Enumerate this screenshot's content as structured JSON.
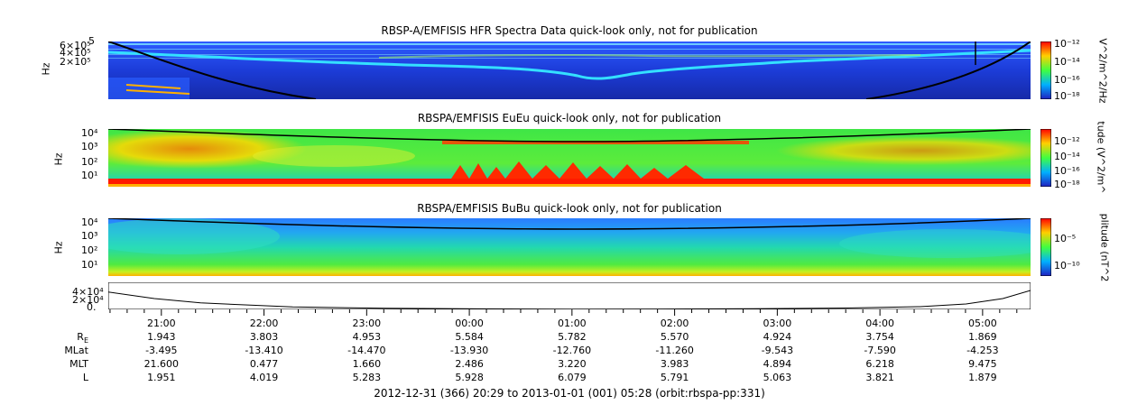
{
  "chart_data": [
    {
      "type": "heatmap",
      "title": "RBSP-A/EMFISIS  HFR Spectra Data quick-look only, not for publication",
      "ylabel": "Hz",
      "y_scale": "log",
      "yticks": [
        "6×10⁵",
        "4×10⁵",
        "2×10⁵"
      ],
      "ytick_top": "5",
      "colorbar_label": "V^2/m^2/Hz",
      "colorbar_ticks": [
        "10⁻¹²",
        "10⁻¹⁴",
        "10⁻¹⁶",
        "10⁻¹⁸"
      ],
      "colors": {
        "background": "#1a3fd6",
        "band": "#2bd3ff",
        "low": "#1b23a8",
        "hot": "#ffb000"
      }
    },
    {
      "type": "heatmap",
      "title": "RBSPA/EMFISIS  EuEu quick-look only, not for publication",
      "ylabel": "Hz",
      "y_scale": "log",
      "yticks": [
        "10⁴",
        "10³",
        "10²",
        "10¹",
        "10⁰"
      ],
      "colorbar_label": "tude (V^2/m^",
      "colorbar_ticks": [
        "10⁻¹²",
        "10⁻¹⁴",
        "10⁻¹⁶",
        "10⁻¹⁸"
      ],
      "colors": {
        "background": "#3ee04a",
        "hot": "#ff2a00",
        "warm": "#ffd000"
      }
    },
    {
      "type": "heatmap",
      "title": "RBSPA/EMFISIS  BuBu quick-look only, not for publication",
      "ylabel": "Hz",
      "y_scale": "log",
      "yticks": [
        "10⁴",
        "10³",
        "10²",
        "10¹"
      ],
      "colorbar_label": "plitude (nT^2",
      "colorbar_ticks": [
        "10⁻⁵",
        "10⁻¹⁰"
      ],
      "colors": {
        "top": "#2a8cff",
        "mid": "#2fe09a",
        "bottom": "#ffd000"
      }
    },
    {
      "type": "line",
      "yticks": [
        "4×10⁴",
        "2×10⁴",
        "0."
      ],
      "x": [
        0,
        0.05,
        0.1,
        0.2,
        0.3,
        0.4,
        0.5,
        0.6,
        0.7,
        0.8,
        0.88,
        0.93,
        0.97,
        1.0
      ],
      "y": [
        3.2,
        2.0,
        1.2,
        0.45,
        0.2,
        0.1,
        0.05,
        0.07,
        0.12,
        0.25,
        0.5,
        1.0,
        2.0,
        3.5
      ],
      "xlim": [
        0,
        1
      ],
      "ylim": [
        0,
        5
      ],
      "y_unit_scale": "×10⁴"
    }
  ],
  "time_axis": {
    "labels": [
      "21:00",
      "22:00",
      "23:00",
      "00:00",
      "01:00",
      "02:00",
      "03:00",
      "04:00",
      "05:00"
    ],
    "start_hours": 20.483,
    "end_hours": 29.467,
    "rows": [
      {
        "name": "R",
        "subscript": "E",
        "values": [
          "1.943",
          "3.803",
          "4.953",
          "5.584",
          "5.782",
          "5.570",
          "4.924",
          "3.754",
          "1.869"
        ]
      },
      {
        "name": "MLat",
        "values": [
          "-3.495",
          "-13.410",
          "-14.470",
          "-13.930",
          "-12.760",
          "-11.260",
          "-9.543",
          "-7.590",
          "-4.253"
        ]
      },
      {
        "name": "MLT",
        "values": [
          "21.600",
          "0.477",
          "1.660",
          "2.486",
          "3.220",
          "3.983",
          "4.894",
          "6.218",
          "9.475"
        ]
      },
      {
        "name": "L",
        "values": [
          "1.951",
          "4.019",
          "5.283",
          "5.928",
          "6.079",
          "5.791",
          "5.063",
          "3.821",
          "1.879"
        ]
      }
    ]
  },
  "footer": "2012-12-31 (366) 20:29 to 2013-01-01 (001) 05:28 (orbit:rbspa-pp:331)"
}
